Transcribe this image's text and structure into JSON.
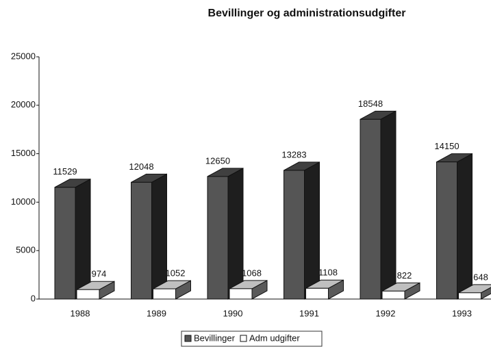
{
  "chart_data": {
    "type": "bar3d",
    "title": "Bevillinger og administrationsudgifter",
    "categories": [
      "1988",
      "1989",
      "1990",
      "1991",
      "1992",
      "1993"
    ],
    "series": [
      {
        "name": "Bevillinger",
        "color": "#555555",
        "values": [
          11529,
          12048,
          12650,
          13283,
          18548,
          14150
        ]
      },
      {
        "name": "Adm udgifter",
        "color": "#ffffff",
        "values": [
          974,
          1052,
          1068,
          1108,
          822,
          648
        ]
      }
    ],
    "ylim": [
      0,
      25000
    ],
    "yticks": [
      0,
      5000,
      10000,
      15000,
      20000,
      25000
    ],
    "legend": "bottom"
  }
}
